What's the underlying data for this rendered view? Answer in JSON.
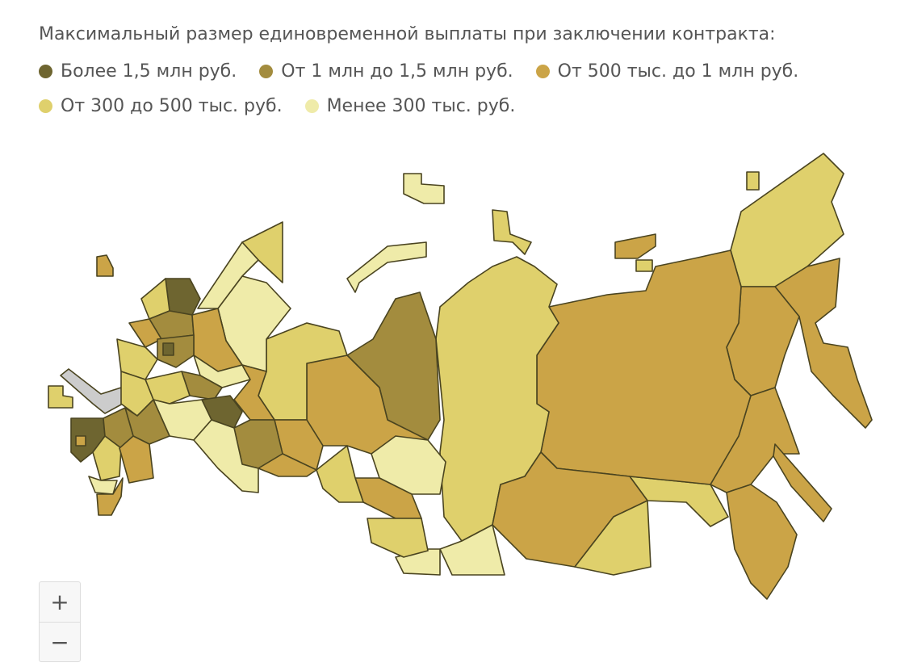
{
  "title": "Максимальный размер единовременной выплаты при заключении контракта:",
  "legend": [
    {
      "label": "Более 1,5 млн руб.",
      "color": "#6e6530"
    },
    {
      "label": "От 1 млн до 1,5 млн руб.",
      "color": "#a38c3e"
    },
    {
      "label": "От 500 тыс. до 1 млн руб.",
      "color": "#cba447"
    },
    {
      "label": "От 300 до 500 тыс. руб.",
      "color": "#dfd06c"
    },
    {
      "label": "Менее 300 тыс. руб.",
      "color": "#efeba9"
    }
  ],
  "zoom": {
    "in": "+",
    "out": "−"
  }
}
